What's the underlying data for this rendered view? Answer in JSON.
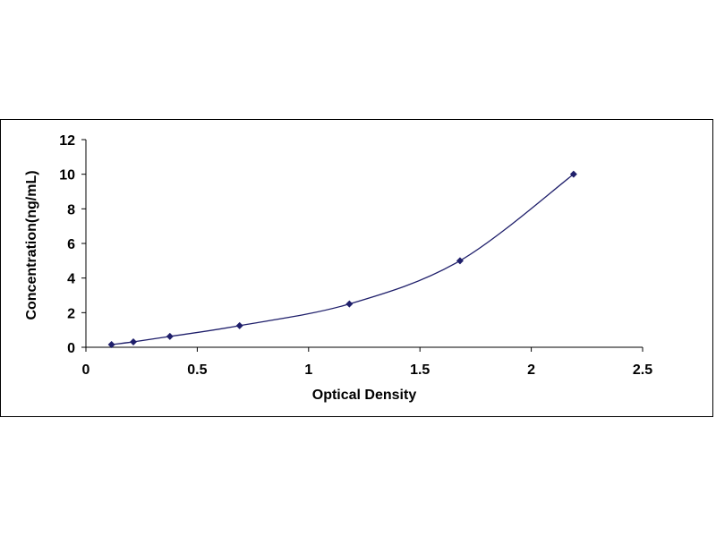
{
  "chart_data": {
    "type": "scatter",
    "title": "",
    "xlabel": "Optical Density",
    "ylabel": "Concentration(ng/mL)",
    "xlim": [
      0,
      2.5
    ],
    "ylim": [
      0,
      12
    ],
    "xticks": [
      "0",
      "0.5",
      "1",
      "1.5",
      "2",
      "2.5"
    ],
    "yticks": [
      "0",
      "2",
      "4",
      "6",
      "8",
      "10",
      "12"
    ],
    "grid": false,
    "legend": "none",
    "trendline": "smooth",
    "series": [
      {
        "x": [
          0.115,
          0.213,
          0.377,
          0.69,
          1.183,
          1.68,
          2.19
        ],
        "y": [
          0.156,
          0.313,
          0.625,
          1.25,
          2.5,
          5,
          10
        ]
      }
    ],
    "colors": {
      "marker": "#1f1f6b",
      "line": "#1f1f6b",
      "axis": "#000000"
    }
  }
}
